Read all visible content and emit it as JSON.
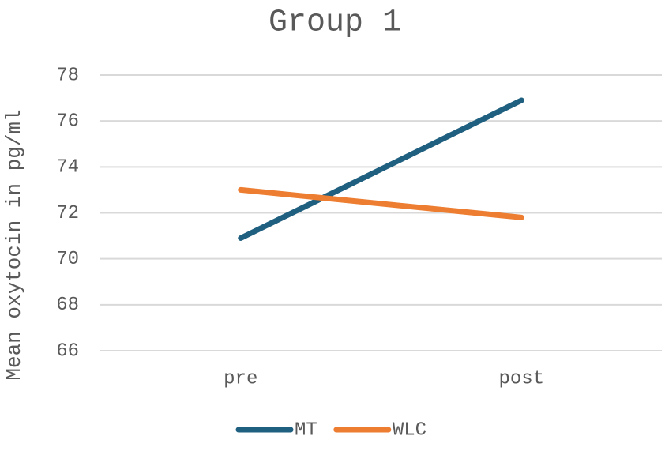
{
  "chart_data": {
    "type": "line",
    "title": "Group 1",
    "y_label": "Mean oxytocin in pg/ml",
    "categories": [
      "pre",
      "post"
    ],
    "series": [
      {
        "name": "MT",
        "color": "#1f5f7f",
        "values": [
          70.9,
          76.9
        ]
      },
      {
        "name": "WLC",
        "color": "#ed7d31",
        "values": [
          73.0,
          71.8
        ]
      }
    ],
    "ylim": [
      66,
      78
    ],
    "yticks": [
      66,
      68,
      70,
      72,
      74,
      76,
      78
    ],
    "grid": true,
    "legend": "bottom"
  }
}
